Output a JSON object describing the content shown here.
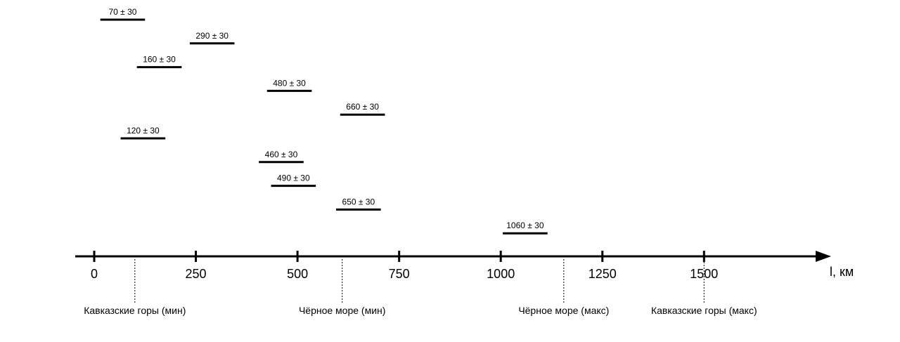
{
  "chart_data": {
    "type": "scatter",
    "x_unit": "км",
    "x_label": "l, км",
    "xlim": [
      0,
      1750
    ],
    "x_ticks": [
      0,
      250,
      500,
      750,
      1000,
      1250,
      1500
    ],
    "tick_labels": [
      "0",
      "250",
      "500",
      "750",
      "1000",
      "1250",
      "1500"
    ],
    "error": 30,
    "half_width_km": 55,
    "estimates": [
      {
        "value": 70,
        "label": "70 ± 30"
      },
      {
        "value": 290,
        "label": "290 ± 30"
      },
      {
        "value": 160,
        "label": "160 ± 30"
      },
      {
        "value": 480,
        "label": "480 ± 30"
      },
      {
        "value": 660,
        "label": "660 ± 30"
      },
      {
        "value": 120,
        "label": "120 ± 30"
      },
      {
        "value": 460,
        "label": "460 ± 30"
      },
      {
        "value": 490,
        "label": "490 ± 30"
      },
      {
        "value": 650,
        "label": "650 ± 30"
      },
      {
        "value": 1060,
        "label": "1060 ± 30"
      }
    ],
    "reference_lines": [
      {
        "value": 100,
        "label": "Кавказские горы (мин)"
      },
      {
        "value": 610,
        "label": "Чёрное море (мин)"
      },
      {
        "value": 1155,
        "label": "Чёрное море (макс)"
      },
      {
        "value": 1500,
        "label": "Кавказские горы (макс)"
      }
    ],
    "grid": false
  }
}
